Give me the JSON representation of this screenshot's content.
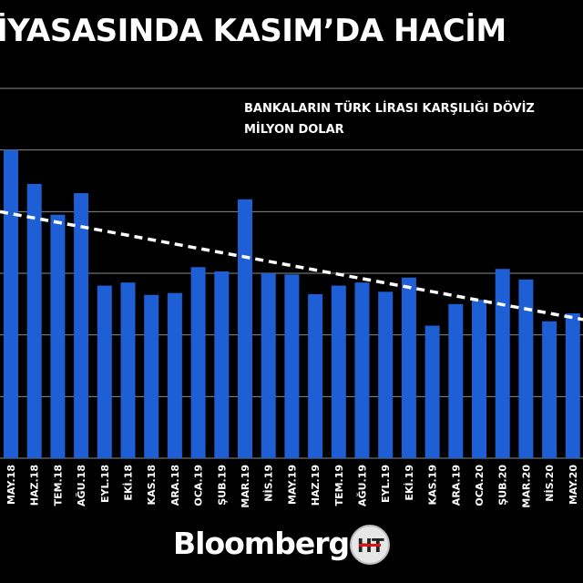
{
  "title": "İYASASINDA KASIM’DA HACİM",
  "subtitle_lines": [
    "BANKALARIN TÜRK LİRASI KARŞILIĞI DÖVİZ",
    "MİLYON DOLAR"
  ],
  "logo_text": "Bloomberg",
  "ht_logo": {
    "left": "H",
    "right": "T"
  },
  "colors": {
    "bar": "#1f5fd6",
    "grid": "#8a8a8a",
    "trend": "#ffffff",
    "background": "#000000"
  },
  "chart_data": {
    "type": "bar",
    "categories": [
      "MAY.18",
      "HAZ.18",
      "TEM.18",
      "AĞU.18",
      "EYL.18",
      "EKİ.18",
      "KAS.18",
      "ARA.18",
      "OCA.19",
      "ŞUB.19",
      "MAR.19",
      "NİS.19",
      "MAY.19",
      "HAZ.19",
      "TEM.19",
      "AĞU.19",
      "EYL.19",
      "EKİ.19",
      "KAS.19",
      "ARA.19",
      "OCA.20",
      "ŞUB.20",
      "MAR.20",
      "NİS.20",
      "MAY.20"
    ],
    "values": [
      5.0,
      4.45,
      3.95,
      4.3,
      2.8,
      2.85,
      2.65,
      2.68,
      3.1,
      3.03,
      4.2,
      3.0,
      2.98,
      2.66,
      2.8,
      2.85,
      2.7,
      2.93,
      2.15,
      2.5,
      2.57,
      3.07,
      2.9,
      2.22,
      2.35
    ],
    "trend": {
      "start": 4.0,
      "end": 2.25
    },
    "ylim": [
      0,
      6
    ],
    "grid": true,
    "xlabel": "",
    "ylabel": ""
  }
}
